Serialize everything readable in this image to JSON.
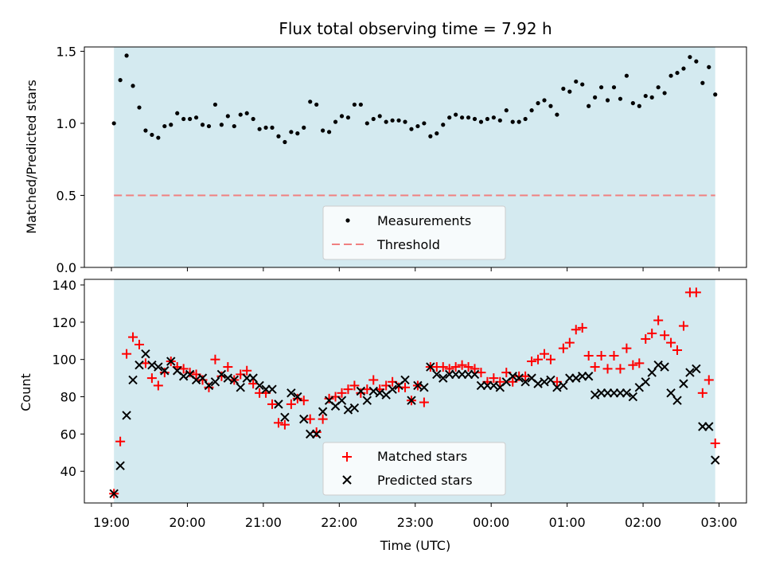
{
  "chart_data": [
    {
      "type": "scatter",
      "title": "Flux total observing time = 7.92 h",
      "xlabel": "",
      "ylabel": "Matched/Predicted stars",
      "ylim": [
        0,
        1.53
      ],
      "yticks": [
        "0.0",
        "0.5",
        "1.0",
        "1.5"
      ],
      "ytick_values": [
        0,
        0.5,
        1.0,
        1.5
      ],
      "shaded_region": {
        "from": "19:02",
        "to": "02:57",
        "color": "#d4eaf0"
      },
      "threshold": {
        "name": "Threshold",
        "value": 0.5,
        "color": "#f08080",
        "style": "dashed"
      },
      "legend": {
        "placement": "lower-center",
        "entries": [
          "Measurements",
          "Threshold"
        ]
      },
      "series": [
        {
          "name": "Measurements",
          "marker": "dot",
          "color": "#000000",
          "x": [
            "19:02",
            "19:07",
            "19:12",
            "19:17",
            "19:22",
            "19:27",
            "19:32",
            "19:37",
            "19:42",
            "19:47",
            "19:52",
            "19:57",
            "20:02",
            "20:07",
            "20:12",
            "20:17",
            "20:22",
            "20:27",
            "20:32",
            "20:37",
            "20:42",
            "20:47",
            "20:52",
            "20:57",
            "21:02",
            "21:07",
            "21:12",
            "21:17",
            "21:22",
            "21:27",
            "21:32",
            "21:37",
            "21:42",
            "21:47",
            "21:52",
            "21:57",
            "22:02",
            "22:07",
            "22:12",
            "22:17",
            "22:22",
            "22:27",
            "22:32",
            "22:37",
            "22:42",
            "22:47",
            "22:52",
            "22:57",
            "23:02",
            "23:07",
            "23:12",
            "23:17",
            "23:22",
            "23:27",
            "23:32",
            "23:37",
            "23:42",
            "23:47",
            "23:52",
            "23:57",
            "00:02",
            "00:07",
            "00:12",
            "00:17",
            "00:22",
            "00:27",
            "00:32",
            "00:37",
            "00:42",
            "00:47",
            "00:52",
            "00:57",
            "01:02",
            "01:07",
            "01:12",
            "01:17",
            "01:22",
            "01:27",
            "01:32",
            "01:37",
            "01:42",
            "01:47",
            "01:52",
            "01:57",
            "02:02",
            "02:07",
            "02:12",
            "02:17",
            "02:22",
            "02:27",
            "02:32",
            "02:37",
            "02:42",
            "02:47",
            "02:52",
            "02:57"
          ],
          "values": [
            1.0,
            1.3,
            1.47,
            1.26,
            1.11,
            0.95,
            0.92,
            0.9,
            0.98,
            0.99,
            1.07,
            1.03,
            1.03,
            1.04,
            0.99,
            0.98,
            1.13,
            0.99,
            1.05,
            0.98,
            1.06,
            1.07,
            1.03,
            0.96,
            0.97,
            0.97,
            0.91,
            0.87,
            0.94,
            0.93,
            0.97,
            1.15,
            1.13,
            0.95,
            0.94,
            1.01,
            1.05,
            1.04,
            1.13,
            1.13,
            1.0,
            1.03,
            1.05,
            1.01,
            1.02,
            1.02,
            1.01,
            0.96,
            0.98,
            1.0,
            0.91,
            0.93,
            0.99,
            1.04,
            1.06,
            1.04,
            1.04,
            1.03,
            1.01,
            1.03,
            1.04,
            1.02,
            1.09,
            1.01,
            1.01,
            1.03,
            1.09,
            1.14,
            1.16,
            1.12,
            1.06,
            1.24,
            1.22,
            1.29,
            1.27,
            1.12,
            1.18,
            1.25,
            1.16,
            1.25,
            1.17,
            1.33,
            1.14,
            1.12,
            1.19,
            1.18,
            1.25,
            1.21,
            1.33,
            1.35,
            1.38,
            1.46,
            1.43,
            1.28,
            1.39,
            1.2
          ]
        }
      ]
    },
    {
      "type": "scatter",
      "title": "",
      "xlabel": "Time (UTC)",
      "ylabel": "Count",
      "ylim": [
        23,
        143
      ],
      "yticks": [
        "40",
        "60",
        "80",
        "100",
        "120",
        "140"
      ],
      "ytick_values": [
        40,
        60,
        80,
        100,
        120,
        140
      ],
      "xticks": [
        "19:00",
        "20:00",
        "21:00",
        "22:00",
        "23:00",
        "00:00",
        "01:00",
        "02:00",
        "03:00"
      ],
      "shaded_region": {
        "from": "19:02",
        "to": "02:57",
        "color": "#d4eaf0"
      },
      "legend": {
        "placement": "lower-center",
        "entries": [
          "Matched stars",
          "Predicted stars"
        ]
      },
      "series": [
        {
          "name": "Matched stars",
          "marker": "plus",
          "color": "#ff0000",
          "x": [
            "19:02",
            "19:07",
            "19:12",
            "19:17",
            "19:22",
            "19:27",
            "19:32",
            "19:37",
            "19:42",
            "19:47",
            "19:52",
            "19:57",
            "20:02",
            "20:07",
            "20:12",
            "20:17",
            "20:22",
            "20:27",
            "20:32",
            "20:37",
            "20:42",
            "20:47",
            "20:52",
            "20:57",
            "21:02",
            "21:07",
            "21:12",
            "21:17",
            "21:22",
            "21:27",
            "21:32",
            "21:37",
            "21:42",
            "21:47",
            "21:52",
            "21:57",
            "22:02",
            "22:07",
            "22:12",
            "22:17",
            "22:22",
            "22:27",
            "22:32",
            "22:37",
            "22:42",
            "22:47",
            "22:52",
            "22:57",
            "23:02",
            "23:07",
            "23:12",
            "23:17",
            "23:22",
            "23:27",
            "23:32",
            "23:37",
            "23:42",
            "23:47",
            "23:52",
            "23:57",
            "00:02",
            "00:07",
            "00:12",
            "00:17",
            "00:22",
            "00:27",
            "00:32",
            "00:37",
            "00:42",
            "00:47",
            "00:52",
            "00:57",
            "01:02",
            "01:07",
            "01:12",
            "01:17",
            "01:22",
            "01:27",
            "01:32",
            "01:37",
            "01:42",
            "01:47",
            "01:52",
            "01:57",
            "02:02",
            "02:07",
            "02:12",
            "02:17",
            "02:22",
            "02:27",
            "02:32",
            "02:37",
            "02:42",
            "02:47",
            "02:52",
            "02:57"
          ],
          "values": [
            28,
            56,
            103,
            112,
            108,
            98,
            90,
            86,
            93,
            99,
            96,
            95,
            93,
            92,
            89,
            85,
            100,
            91,
            96,
            89,
            92,
            94,
            87,
            82,
            82,
            76,
            66,
            65,
            76,
            79,
            78,
            68,
            61,
            68,
            79,
            80,
            82,
            84,
            86,
            82,
            84,
            89,
            84,
            86,
            88,
            85,
            85,
            78,
            86,
            77,
            96,
            96,
            96,
            95,
            96,
            97,
            96,
            95,
            93,
            88,
            90,
            88,
            93,
            88,
            91,
            91,
            99,
            100,
            103,
            100,
            88,
            106,
            109,
            116,
            117,
            102,
            96,
            102,
            95,
            102,
            95,
            106,
            97,
            98,
            111,
            114,
            121,
            113,
            109,
            105,
            118,
            136,
            136,
            82,
            89,
            55
          ]
        },
        {
          "name": "Predicted stars",
          "marker": "x",
          "color": "#000000",
          "x": [
            "19:02",
            "19:07",
            "19:12",
            "19:17",
            "19:22",
            "19:27",
            "19:32",
            "19:37",
            "19:42",
            "19:47",
            "19:52",
            "19:57",
            "20:02",
            "20:07",
            "20:12",
            "20:17",
            "20:22",
            "20:27",
            "20:32",
            "20:37",
            "20:42",
            "20:47",
            "20:52",
            "20:57",
            "21:02",
            "21:07",
            "21:12",
            "21:17",
            "21:22",
            "21:27",
            "21:32",
            "21:37",
            "21:42",
            "21:47",
            "21:52",
            "21:57",
            "22:02",
            "22:07",
            "22:12",
            "22:17",
            "22:22",
            "22:27",
            "22:32",
            "22:37",
            "22:42",
            "22:47",
            "22:52",
            "22:57",
            "23:02",
            "23:07",
            "23:12",
            "23:17",
            "23:22",
            "23:27",
            "23:32",
            "23:37",
            "23:42",
            "23:47",
            "23:52",
            "23:57",
            "00:02",
            "00:07",
            "00:12",
            "00:17",
            "00:22",
            "00:27",
            "00:32",
            "00:37",
            "00:42",
            "00:47",
            "00:52",
            "00:57",
            "01:02",
            "01:07",
            "01:12",
            "01:17",
            "01:22",
            "01:27",
            "01:32",
            "01:37",
            "01:42",
            "01:47",
            "01:52",
            "01:57",
            "02:02",
            "02:07",
            "02:12",
            "02:17",
            "02:22",
            "02:27",
            "02:32",
            "02:37",
            "02:42",
            "02:47",
            "02:52",
            "02:57"
          ],
          "values": [
            28,
            43,
            70,
            89,
            97,
            103,
            97,
            96,
            94,
            99,
            94,
            91,
            92,
            89,
            90,
            86,
            88,
            92,
            90,
            89,
            85,
            90,
            90,
            86,
            84,
            84,
            76,
            69,
            82,
            80,
            68,
            60,
            60,
            72,
            78,
            75,
            78,
            73,
            74,
            83,
            78,
            83,
            82,
            81,
            84,
            86,
            89,
            78,
            86,
            85,
            96,
            92,
            90,
            92,
            92,
            92,
            92,
            92,
            86,
            86,
            86,
            85,
            88,
            91,
            90,
            88,
            90,
            87,
            88,
            89,
            85,
            86,
            90,
            90,
            91,
            91,
            81,
            82,
            82,
            82,
            82,
            82,
            80,
            85,
            88,
            93,
            97,
            96,
            82,
            78,
            87,
            93,
            95,
            64,
            64,
            46
          ]
        }
      ]
    }
  ]
}
